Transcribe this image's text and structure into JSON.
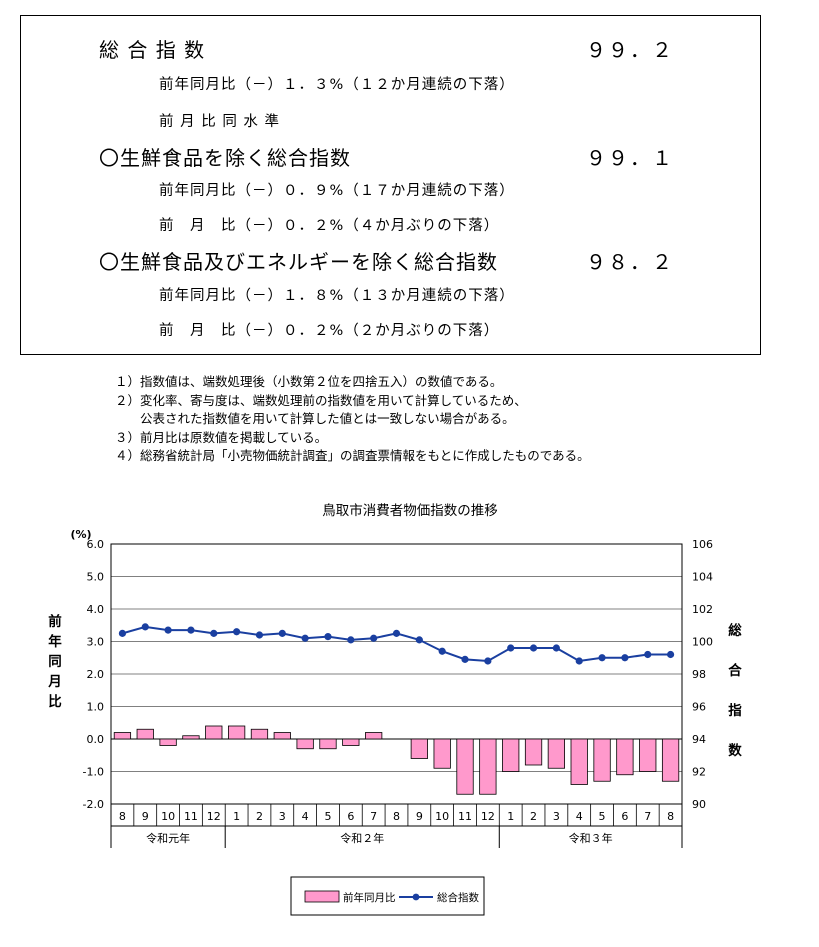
{
  "summary": {
    "items": [
      {
        "title": "総 合 指 数",
        "value": "９９．２",
        "lines": [
          "前年同月比（－）１．３%（１２か月連続の下落）",
          "前 月 比 同 水 準"
        ]
      },
      {
        "title": "〇生鮮食品を除く総合指数",
        "value": "９９．１",
        "lines": [
          "前年同月比（－）０．９%（１７か月連続の下落）",
          "前　月　比（－）０．２%（４か月ぶりの下落）"
        ]
      },
      {
        "title": "〇生鮮食品及びエネルギーを除く総合指数",
        "value": "９８．２",
        "lines": [
          "前年同月比（－）１．８%（１３か月連続の下落）",
          "前　月　比（－）０．２%（２か月ぶりの下落）"
        ]
      }
    ]
  },
  "notes": [
    "１）指数値は、端数処理後（小数第２位を四捨五入）の数値である。",
    "２）変化率、寄与度は、端数処理前の指数値を用いて計算しているため、",
    "　　公表された指数値を用いて計算した値とは一致しない場合がある。",
    "３）前月比は原数値を掲載している。",
    "４）総務省統計局「小売物価統計調査」の調査票情報をもとに作成したものである。"
  ],
  "chart_data": {
    "type": "bar",
    "title": "鳥取市消費者物価指数の推移",
    "categories": [
      "8",
      "9",
      "10",
      "11",
      "12",
      "1",
      "2",
      "3",
      "4",
      "5",
      "6",
      "7",
      "8",
      "9",
      "10",
      "11",
      "12",
      "1",
      "2",
      "3",
      "4",
      "5",
      "6",
      "7",
      "8"
    ],
    "year_groups": [
      {
        "label": "令和元年",
        "count": 5
      },
      {
        "label": "令和２年",
        "count": 12
      },
      {
        "label": "令和３年",
        "count": 8
      }
    ],
    "left_axis": {
      "unit": "(%)",
      "label": "前年同月比",
      "ylim": [
        -2.0,
        6.0
      ],
      "ticks": [
        "6.0",
        "5.0",
        "4.0",
        "3.0",
        "2.0",
        "1.0",
        "0.0",
        "-1.0",
        "-2.0"
      ]
    },
    "right_axis": {
      "label": "総合指数",
      "ylim": [
        90,
        106
      ],
      "ticks": [
        "106",
        "104",
        "102",
        "100",
        "98",
        "96",
        "94",
        "92",
        "90"
      ]
    },
    "series": [
      {
        "name": "前年同月比",
        "type": "bar",
        "axis": "left",
        "color": "#ff99cc",
        "values": [
          0.2,
          0.3,
          -0.2,
          0.1,
          0.4,
          0.4,
          0.3,
          0.2,
          -0.3,
          -0.3,
          -0.2,
          0.2,
          0.0,
          -0.6,
          -0.9,
          -1.7,
          -1.7,
          -1.0,
          -0.8,
          -0.9,
          -1.4,
          -1.3,
          -1.1,
          -1.0,
          -1.3
        ]
      },
      {
        "name": "総合指数",
        "type": "line",
        "axis": "right",
        "color": "#1a3fa0",
        "values": [
          100.5,
          100.9,
          100.7,
          100.7,
          100.5,
          100.6,
          100.4,
          100.5,
          100.2,
          100.3,
          100.1,
          100.2,
          100.5,
          100.1,
          99.4,
          98.9,
          98.8,
          99.6,
          99.6,
          99.6,
          98.8,
          99.0,
          99.0,
          99.2,
          99.2
        ]
      }
    ],
    "grid": true,
    "legend": "bottom-center"
  }
}
